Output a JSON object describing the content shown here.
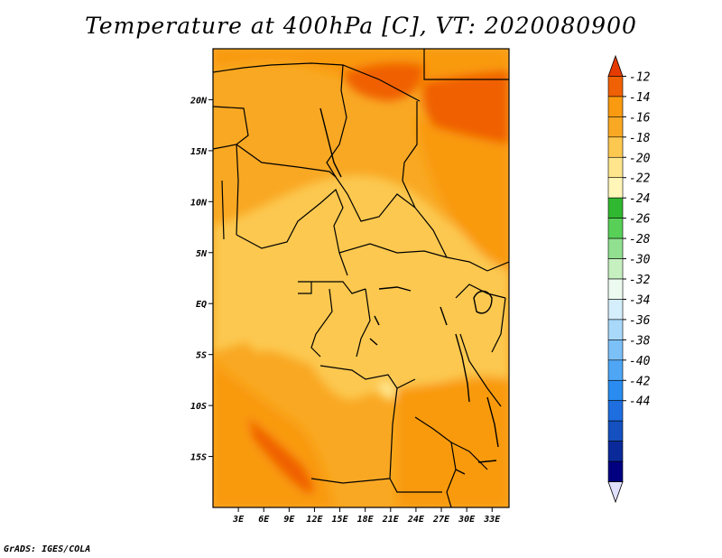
{
  "title": "Temperature at 400hPa [C], VT: 2020080900",
  "credit": "GrADS: IGES/COLA",
  "map": {
    "lat_labels": [
      "20N",
      "15N",
      "10N",
      "5N",
      "EQ",
      "5S",
      "10S",
      "15S"
    ],
    "lon_labels": [
      "3E",
      "6E",
      "9E",
      "12E",
      "15E",
      "18E",
      "21E",
      "24E",
      "27E",
      "30E",
      "33E"
    ],
    "lat_values": [
      20,
      15,
      10,
      5,
      0,
      -5,
      -10,
      -15
    ],
    "lon_values": [
      3,
      6,
      9,
      12,
      15,
      18,
      21,
      24,
      27,
      30,
      33
    ],
    "lon_range": [
      0,
      35
    ],
    "lat_range": [
      -20,
      25
    ]
  },
  "colorbar": {
    "labels": [
      "-12",
      "-14",
      "-16",
      "-18",
      "-20",
      "-22",
      "-24",
      "-26",
      "-28",
      "-30",
      "-32",
      "-34",
      "-36",
      "-38",
      "-40",
      "-42",
      "-44"
    ],
    "colors": [
      "#e0e0ff",
      "#000080",
      "#0a2a9a",
      "#1450c0",
      "#1e6ee0",
      "#2a8cf0",
      "#4ea6f5",
      "#7cc0f8",
      "#a8d8fa",
      "#d4eefc",
      "#ecfaf0",
      "#c6f0c0",
      "#90e090",
      "#58d058",
      "#30b830",
      "#fff6b8",
      "#ffe68c",
      "#fcc850",
      "#f9a823",
      "#f99a10",
      "#f06004",
      "#e63b00"
    ]
  }
}
